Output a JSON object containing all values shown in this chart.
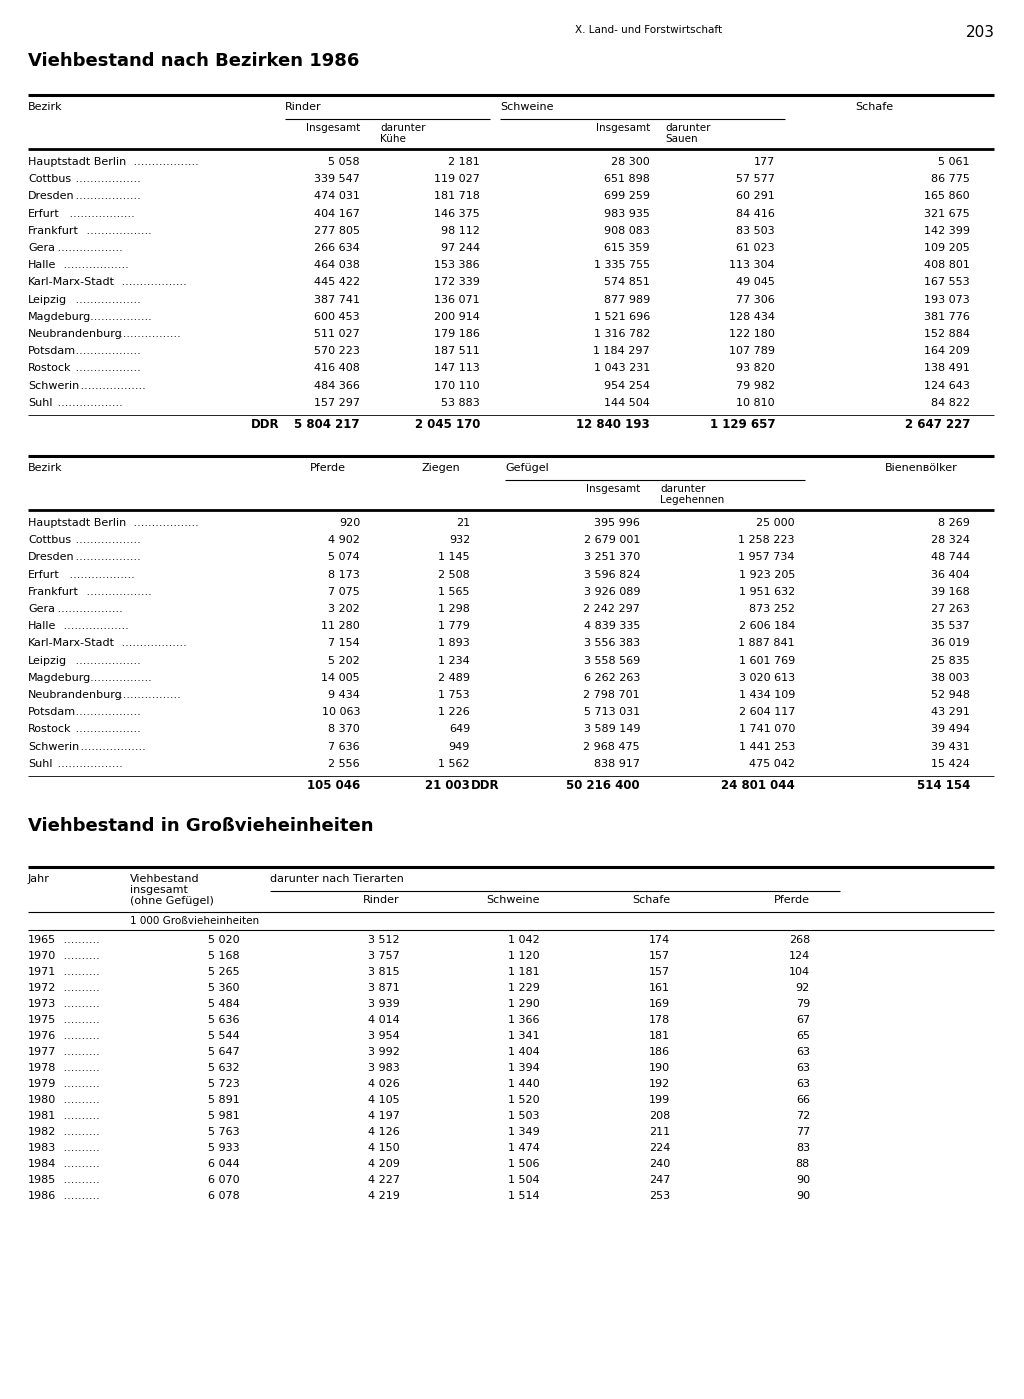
{
  "page_header_left": "X. Land- und Forstwirtschaft",
  "page_number": "203",
  "title1": "Viehbestand nach Bezirken 1986",
  "title2": "Viehbestand in Großvieheinheiten",
  "table1_rows": [
    [
      "Hauptstadt Berlin",
      "5 058",
      "2 181",
      "28 300",
      "177",
      "5 061"
    ],
    [
      "Cottbus",
      "339 547",
      "119 027",
      "651 898",
      "57 577",
      "86 775"
    ],
    [
      "Dresden",
      "474 031",
      "181 718",
      "699 259",
      "60 291",
      "165 860"
    ],
    [
      "Erfurt",
      "404 167",
      "146 375",
      "983 935",
      "84 416",
      "321 675"
    ],
    [
      "Frankfurt",
      "277 805",
      "98 112",
      "908 083",
      "83 503",
      "142 399"
    ],
    [
      "Gera",
      "266 634",
      "97 244",
      "615 359",
      "61 023",
      "109 205"
    ],
    [
      "Halle",
      "464 038",
      "153 386",
      "1 335 755",
      "113 304",
      "408 801"
    ],
    [
      "Karl-Marx-Stadt",
      "445 422",
      "172 339",
      "574 851",
      "49 045",
      "167 553"
    ],
    [
      "Leipzig",
      "387 741",
      "136 071",
      "877 989",
      "77 306",
      "193 073"
    ],
    [
      "Magdeburg",
      "600 453",
      "200 914",
      "1 521 696",
      "128 434",
      "381 776"
    ],
    [
      "Neubrandenburg",
      "511 027",
      "179 186",
      "1 316 782",
      "122 180",
      "152 884"
    ],
    [
      "Potsdam",
      "570 223",
      "187 511",
      "1 184 297",
      "107 789",
      "164 209"
    ],
    [
      "Rostock",
      "416 408",
      "147 113",
      "1 043 231",
      "93 820",
      "138 491"
    ],
    [
      "Schwerin",
      "484 366",
      "170 110",
      "954 254",
      "79 982",
      "124 643"
    ],
    [
      "Suhl",
      "157 297",
      "53 883",
      "144 504",
      "10 810",
      "84 822"
    ]
  ],
  "table1_ddr": [
    "DDR",
    "5 804 217",
    "2 045 170",
    "12 840 193",
    "1 129 657",
    "2 647 227"
  ],
  "table2_rows": [
    [
      "Hauptstadt Berlin",
      "920",
      "21",
      "395 996",
      "25 000",
      "8 269"
    ],
    [
      "Cottbus",
      "4 902",
      "932",
      "2 679 001",
      "1 258 223",
      "28 324"
    ],
    [
      "Dresden",
      "5 074",
      "1 145",
      "3 251 370",
      "1 957 734",
      "48 744"
    ],
    [
      "Erfurt",
      "8 173",
      "2 508",
      "3 596 824",
      "1 923 205",
      "36 404"
    ],
    [
      "Frankfurt",
      "7 075",
      "1 565",
      "3 926 089",
      "1 951 632",
      "39 168"
    ],
    [
      "Gera",
      "3 202",
      "1 298",
      "2 242 297",
      "873 252",
      "27 263"
    ],
    [
      "Halle",
      "11 280",
      "1 779",
      "4 839 335",
      "2 606 184",
      "35 537"
    ],
    [
      "Karl-Marx-Stadt",
      "7 154",
      "1 893",
      "3 556 383",
      "1 887 841",
      "36 019"
    ],
    [
      "Leipzig",
      "5 202",
      "1 234",
      "3 558 569",
      "1 601 769",
      "25 835"
    ],
    [
      "Magdeburg",
      "14 005",
      "2 489",
      "6 262 263",
      "3 020 613",
      "38 003"
    ],
    [
      "Neubrandenburg",
      "9 434",
      "1 753",
      "2 798 701",
      "1 434 109",
      "52 948"
    ],
    [
      "Potsdam",
      "10 063",
      "1 226",
      "5 713 031",
      "2 604 117",
      "43 291"
    ],
    [
      "Rostock",
      "8 370",
      "649",
      "3 589 149",
      "1 741 070",
      "39 494"
    ],
    [
      "Schwerin",
      "7 636",
      "949",
      "2 968 475",
      "1 441 253",
      "39 431"
    ],
    [
      "Suhl",
      "2 556",
      "1 562",
      "838 917",
      "475 042",
      "15 424"
    ]
  ],
  "table2_ddr": [
    "DDR",
    "105 046",
    "21 003",
    "50 216 400",
    "24 801 044",
    "514 154"
  ],
  "table3_unit": "1 000 Großvieheinheiten",
  "table3_rows": [
    [
      "1965",
      "5 020",
      "3 512",
      "1 042",
      "174",
      "268"
    ],
    [
      "1970",
      "5 168",
      "3 757",
      "1 120",
      "157",
      "124"
    ],
    [
      "1971",
      "5 265",
      "3 815",
      "1 181",
      "157",
      "104"
    ],
    [
      "1972",
      "5 360",
      "3 871",
      "1 229",
      "161",
      "92"
    ],
    [
      "1973",
      "5 484",
      "3 939",
      "1 290",
      "169",
      "79"
    ],
    [
      "1975",
      "5 636",
      "4 014",
      "1 366",
      "178",
      "67"
    ],
    [
      "1976",
      "5 544",
      "3 954",
      "1 341",
      "181",
      "65"
    ],
    [
      "1977",
      "5 647",
      "3 992",
      "1 404",
      "186",
      "63"
    ],
    [
      "1978",
      "5 632",
      "3 983",
      "1 394",
      "190",
      "63"
    ],
    [
      "1979",
      "5 723",
      "4 026",
      "1 440",
      "192",
      "63"
    ],
    [
      "1980",
      "5 891",
      "4 105",
      "1 520",
      "199",
      "66"
    ],
    [
      "1981",
      "5 981",
      "4 197",
      "1 503",
      "208",
      "72"
    ],
    [
      "1982",
      "5 763",
      "4 126",
      "1 349",
      "211",
      "77"
    ],
    [
      "1983",
      "5 933",
      "4 150",
      "1 474",
      "224",
      "83"
    ],
    [
      "1984",
      "6 044",
      "4 209",
      "1 506",
      "240",
      "88"
    ],
    [
      "1985",
      "6 070",
      "4 227",
      "1 504",
      "247",
      "90"
    ],
    [
      "1986",
      "6 078",
      "4 219",
      "1 514",
      "253",
      "90"
    ]
  ]
}
